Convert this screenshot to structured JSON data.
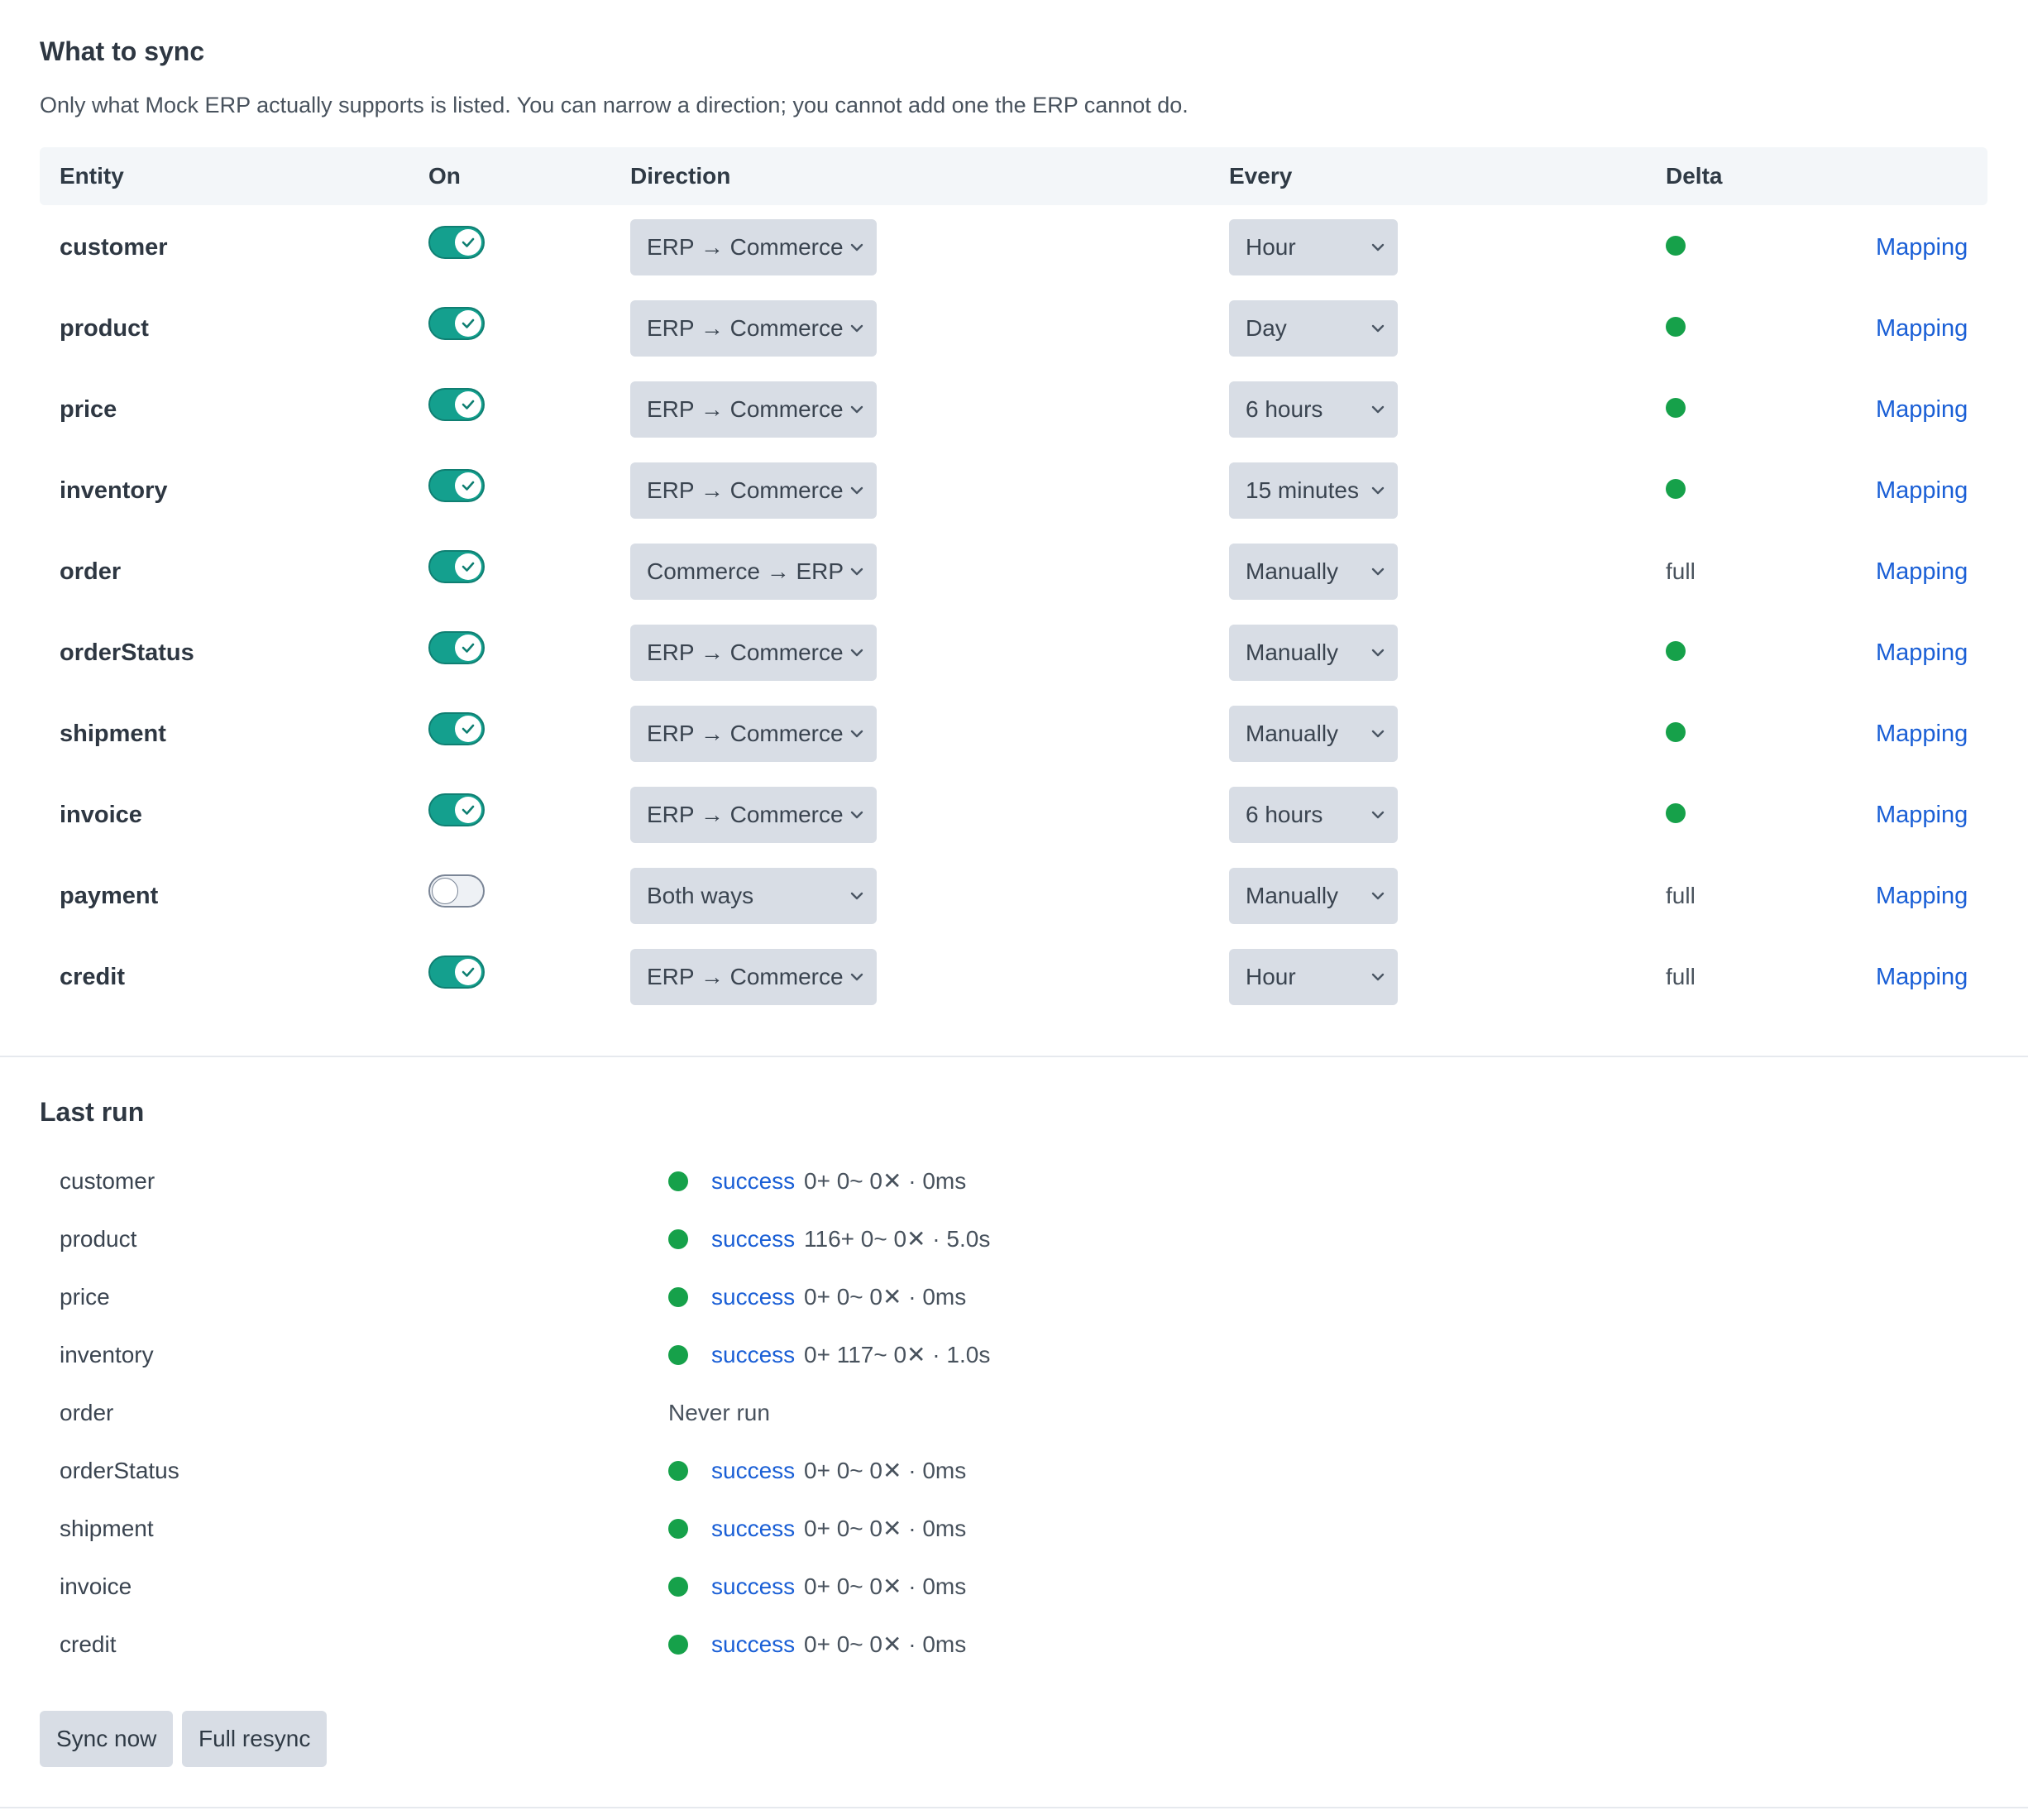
{
  "sync": {
    "title": "What to sync",
    "intro": "Only what Mock ERP actually supports is listed. You can narrow a direction; you cannot add one the ERP cannot do.",
    "headers": {
      "entity": "Entity",
      "on": "On",
      "direction": "Direction",
      "every": "Every",
      "delta": "Delta"
    },
    "rows": [
      {
        "entity": "customer",
        "on": true,
        "direction": "ERP → Commerce",
        "every": "Hour",
        "delta": "dot",
        "mapping": "Mapping"
      },
      {
        "entity": "product",
        "on": true,
        "direction": "ERP → Commerce",
        "every": "Day",
        "delta": "dot",
        "mapping": "Mapping"
      },
      {
        "entity": "price",
        "on": true,
        "direction": "ERP → Commerce",
        "every": "6 hours",
        "delta": "dot",
        "mapping": "Mapping"
      },
      {
        "entity": "inventory",
        "on": true,
        "direction": "ERP → Commerce",
        "every": "15 minutes",
        "delta": "dot",
        "mapping": "Mapping"
      },
      {
        "entity": "order",
        "on": true,
        "direction": "Commerce → ERP",
        "every": "Manually",
        "delta": "full",
        "mapping": "Mapping"
      },
      {
        "entity": "orderStatus",
        "on": true,
        "direction": "ERP → Commerce",
        "every": "Manually",
        "delta": "dot",
        "mapping": "Mapping"
      },
      {
        "entity": "shipment",
        "on": true,
        "direction": "ERP → Commerce",
        "every": "Manually",
        "delta": "dot",
        "mapping": "Mapping"
      },
      {
        "entity": "invoice",
        "on": true,
        "direction": "ERP → Commerce",
        "every": "6 hours",
        "delta": "dot",
        "mapping": "Mapping"
      },
      {
        "entity": "payment",
        "on": false,
        "direction": "Both ways",
        "every": "Manually",
        "delta": "full",
        "mapping": "Mapping"
      },
      {
        "entity": "credit",
        "on": true,
        "direction": "ERP → Commerce",
        "every": "Hour",
        "delta": "full",
        "mapping": "Mapping"
      }
    ]
  },
  "last_run": {
    "title": "Last run",
    "rows": [
      {
        "entity": "customer",
        "status": "success",
        "stats": "0+ 0~ 0✕ · 0ms"
      },
      {
        "entity": "product",
        "status": "success",
        "stats": "116+ 0~ 0✕ · 5.0s"
      },
      {
        "entity": "price",
        "status": "success",
        "stats": "0+ 0~ 0✕ · 0ms"
      },
      {
        "entity": "inventory",
        "status": "success",
        "stats": "0+ 117~ 0✕ · 1.0s"
      },
      {
        "entity": "order",
        "status": "",
        "stats": "",
        "never": "Never run"
      },
      {
        "entity": "orderStatus",
        "status": "success",
        "stats": "0+ 0~ 0✕ · 0ms"
      },
      {
        "entity": "shipment",
        "status": "success",
        "stats": "0+ 0~ 0✕ · 0ms"
      },
      {
        "entity": "invoice",
        "status": "success",
        "stats": "0+ 0~ 0✕ · 0ms"
      },
      {
        "entity": "credit",
        "status": "success",
        "stats": "0+ 0~ 0✕ · 0ms"
      }
    ]
  },
  "actions": {
    "sync_now": "Sync now",
    "full_resync": "Full resync"
  },
  "colors": {
    "accent": "#14a08e",
    "success": "#16a14a",
    "link": "#1a5fd6"
  },
  "icons": {
    "toggle_on": "check-icon",
    "select": "chevron-down-icon",
    "delta_dot": "status-dot-icon"
  }
}
